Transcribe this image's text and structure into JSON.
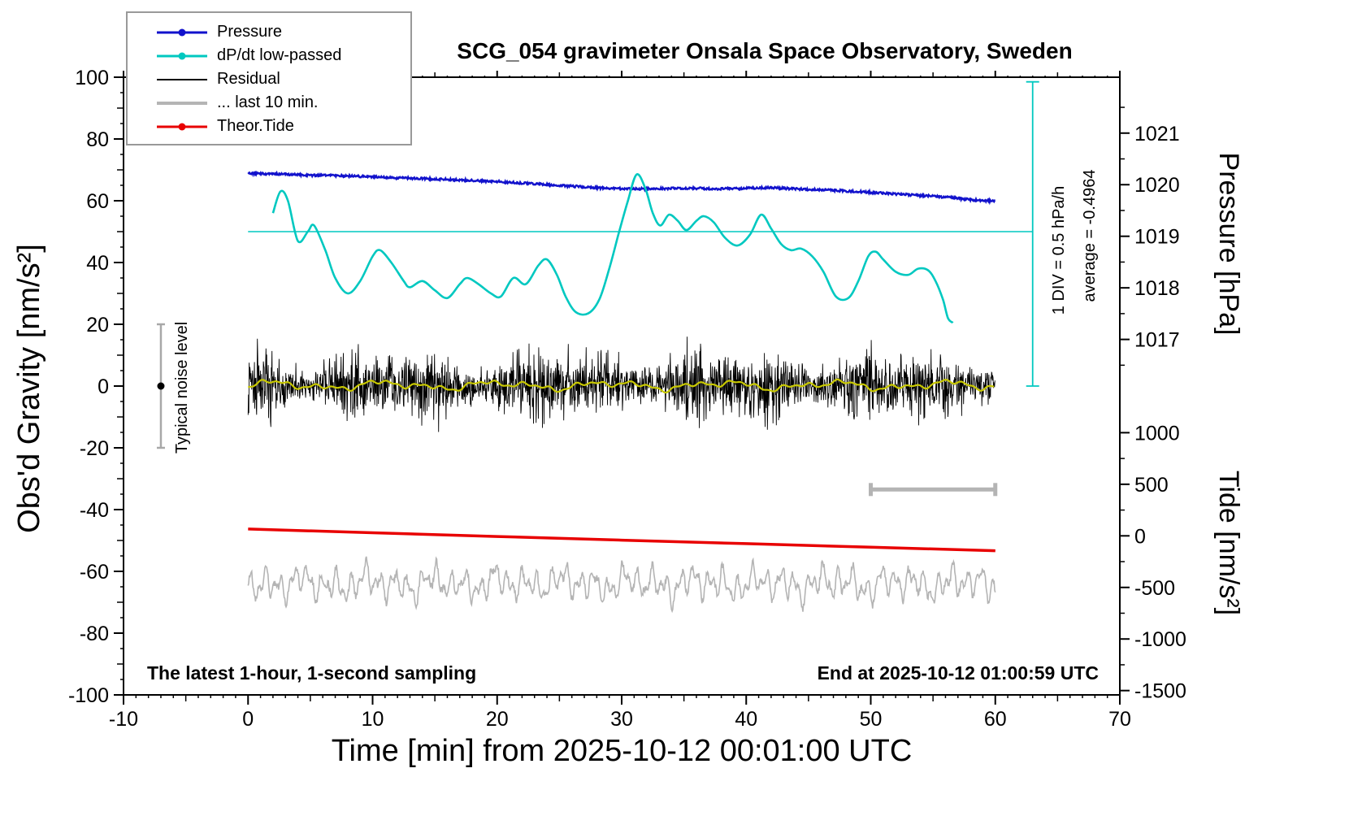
{
  "figure": {
    "title": "SCG_054 gravimeter Onsala Space Observatory, Sweden",
    "xlabel": "Time [min] from 2025-10-12 00:01:00 UTC",
    "ylabel_left": "Obs'd Gravity [nm/s²]",
    "ylabel_pressure": "Pressure [hPa]",
    "ylabel_tide": "Tide [nm/s²]",
    "footer_left": "The latest 1-hour, 1-second sampling",
    "footer_right": "End at 2025-10-12 01:00:59 UTC",
    "annotation_div": "1 DIV = 0.5 hPa/h",
    "annotation_average": "average = -0.4964",
    "annotation_noise": "Typical noise level"
  },
  "legend": {
    "items": [
      {
        "label": "Pressure",
        "color": "#1212cc",
        "marker": true,
        "line_width": 3
      },
      {
        "label": "dP/dt low-passed",
        "color": "#00c8c0",
        "marker": true,
        "line_width": 3
      },
      {
        "label": "Residual",
        "color": "#000000",
        "marker": false,
        "line_width": 2
      },
      {
        "label": "... last 10 min.",
        "color": "#b4b4b4",
        "marker": false,
        "line_width": 4
      },
      {
        "label": "Theor.Tide",
        "color": "#e80000",
        "marker": true,
        "line_width": 3
      }
    ]
  },
  "chart_data": {
    "type": "line",
    "title": "SCG_054 gravimeter Onsala Space Observatory, Sweden",
    "xlabel": "Time [min] from 2025-10-12 00:01:00 UTC",
    "ylabel": "Obs'd Gravity [nm/s²]",
    "xlim": [
      -10,
      70
    ],
    "ylim": [
      -100,
      100
    ],
    "xticks_major": [
      -10,
      0,
      10,
      20,
      30,
      40,
      50,
      60,
      70
    ],
    "yticks_major": [
      -100,
      -80,
      -60,
      -40,
      -20,
      0,
      20,
      40,
      60,
      80,
      100
    ],
    "grid": false,
    "legend_position": "top-left",
    "right_axis_pressure": {
      "label": "Pressure [hPa]",
      "ticks": [
        1017,
        1018,
        1019,
        1020,
        1021
      ],
      "ref_value": 1019,
      "ref_gravity": 48.5,
      "gravity_per_unit": 16.7
    },
    "right_axis_tide": {
      "label": "Tide [nm/s²]",
      "ticks": [
        -1500,
        -1000,
        -500,
        0,
        500,
        1000
      ],
      "ref_value": 0,
      "ref_gravity": -48.5,
      "gravity_per_unit": 0.0334
    },
    "series": {
      "pressure": {
        "name": "Pressure",
        "color": "#1212cc",
        "units": "hPa",
        "points": [
          [
            0,
            1020.22
          ],
          [
            2,
            1020.21
          ],
          [
            4,
            1020.19
          ],
          [
            6,
            1020.18
          ],
          [
            8,
            1020.17
          ],
          [
            10,
            1020.15
          ],
          [
            12,
            1020.13
          ],
          [
            14,
            1020.12
          ],
          [
            16,
            1020.1
          ],
          [
            18,
            1020.08
          ],
          [
            20,
            1020.06
          ],
          [
            22,
            1020.03
          ],
          [
            24,
            1020.0
          ],
          [
            26,
            1019.97
          ],
          [
            28,
            1019.94
          ],
          [
            30,
            1019.92
          ],
          [
            32,
            1019.92
          ],
          [
            34,
            1019.93
          ],
          [
            36,
            1019.93
          ],
          [
            38,
            1019.92
          ],
          [
            40,
            1019.93
          ],
          [
            41,
            1019.94
          ],
          [
            42,
            1019.94
          ],
          [
            44,
            1019.92
          ],
          [
            46,
            1019.9
          ],
          [
            48,
            1019.88
          ],
          [
            50,
            1019.85
          ],
          [
            52,
            1019.82
          ],
          [
            54,
            1019.79
          ],
          [
            56,
            1019.76
          ],
          [
            58,
            1019.71
          ],
          [
            60,
            1019.68
          ]
        ]
      },
      "dpdt_lowpassed": {
        "name": "dP/dt low-passed",
        "color": "#00c8c0",
        "units": "gravity-axis",
        "average_line_y": 50,
        "points": [
          [
            2,
            56
          ],
          [
            2.6,
            63
          ],
          [
            3.2,
            60
          ],
          [
            4,
            47
          ],
          [
            4.8,
            50
          ],
          [
            5.3,
            52
          ],
          [
            6.2,
            44
          ],
          [
            7,
            35
          ],
          [
            8,
            30
          ],
          [
            9,
            34
          ],
          [
            10,
            42
          ],
          [
            10.6,
            44
          ],
          [
            11.5,
            40
          ],
          [
            12.5,
            34
          ],
          [
            13,
            32
          ],
          [
            14,
            34
          ],
          [
            15,
            31
          ],
          [
            16,
            28.5
          ],
          [
            17,
            33
          ],
          [
            17.6,
            35
          ],
          [
            18.5,
            33
          ],
          [
            19.5,
            30
          ],
          [
            20.3,
            29
          ],
          [
            21.3,
            35
          ],
          [
            22.3,
            33
          ],
          [
            23.3,
            39
          ],
          [
            24,
            41
          ],
          [
            24.8,
            36
          ],
          [
            25.5,
            29
          ],
          [
            26.3,
            24
          ],
          [
            27.3,
            23.5
          ],
          [
            28.2,
            28
          ],
          [
            29,
            38
          ],
          [
            29.8,
            50
          ],
          [
            30.5,
            60
          ],
          [
            31.2,
            68.5
          ],
          [
            31.9,
            64
          ],
          [
            32.5,
            56
          ],
          [
            33.1,
            52
          ],
          [
            33.8,
            55.5
          ],
          [
            34.5,
            53.5
          ],
          [
            35.2,
            50.5
          ],
          [
            36,
            53.5
          ],
          [
            36.6,
            55
          ],
          [
            37.4,
            53
          ],
          [
            38.3,
            48
          ],
          [
            39.3,
            45.5
          ],
          [
            40.3,
            49
          ],
          [
            41.2,
            55.5
          ],
          [
            42,
            51
          ],
          [
            42.8,
            46
          ],
          [
            43.6,
            44
          ],
          [
            44.4,
            44.5
          ],
          [
            45.3,
            42
          ],
          [
            46.2,
            37
          ],
          [
            47.2,
            29
          ],
          [
            48.2,
            28.5
          ],
          [
            49,
            34
          ],
          [
            49.8,
            42
          ],
          [
            50.4,
            43.5
          ],
          [
            51,
            41
          ],
          [
            52,
            37
          ],
          [
            53,
            36
          ],
          [
            53.8,
            38
          ],
          [
            54.6,
            37.5
          ],
          [
            55.2,
            34
          ],
          [
            55.8,
            28
          ],
          [
            56.2,
            22
          ],
          [
            56.6,
            20.5
          ]
        ]
      },
      "residual": {
        "name": "Residual",
        "color": "#000000",
        "mean": 0,
        "band_amplitude": 8,
        "peak_amplitude": 15,
        "x_range": [
          0,
          60
        ]
      },
      "residual_smoothed": {
        "name": "Residual smoothed",
        "color": "#c8c800",
        "mean": 0.2,
        "amplitude": 1.6,
        "x_range": [
          0,
          60
        ]
      },
      "last_10_min": {
        "name": "... last 10 min.",
        "color": "#b4b4b4",
        "mean_gravity": -64,
        "amplitude": 8,
        "x_range": [
          0,
          60
        ]
      },
      "theor_tide": {
        "name": "Theor.Tide",
        "color": "#e80000",
        "units": "tide nm/s²",
        "points": [
          [
            0,
            66
          ],
          [
            10,
            30
          ],
          [
            20,
            -6
          ],
          [
            30,
            -42
          ],
          [
            40,
            -76
          ],
          [
            50,
            -110
          ],
          [
            60,
            -144
          ]
        ]
      }
    },
    "annotations": {
      "noise_bar": {
        "x": -7,
        "y": 0,
        "half_range": 20,
        "label": "Typical noise level"
      },
      "scale_bar": {
        "y_gravity": -33.5,
        "x_from": 50,
        "x_to": 60
      },
      "div_ruler": {
        "x": 63,
        "y_from": 0,
        "y_to": 98.5,
        "label": "1 DIV = 0.5 hPa/h",
        "average_label": "average = -0.4964",
        "average_line_y": 50,
        "average_line_x_from": 0
      }
    }
  }
}
